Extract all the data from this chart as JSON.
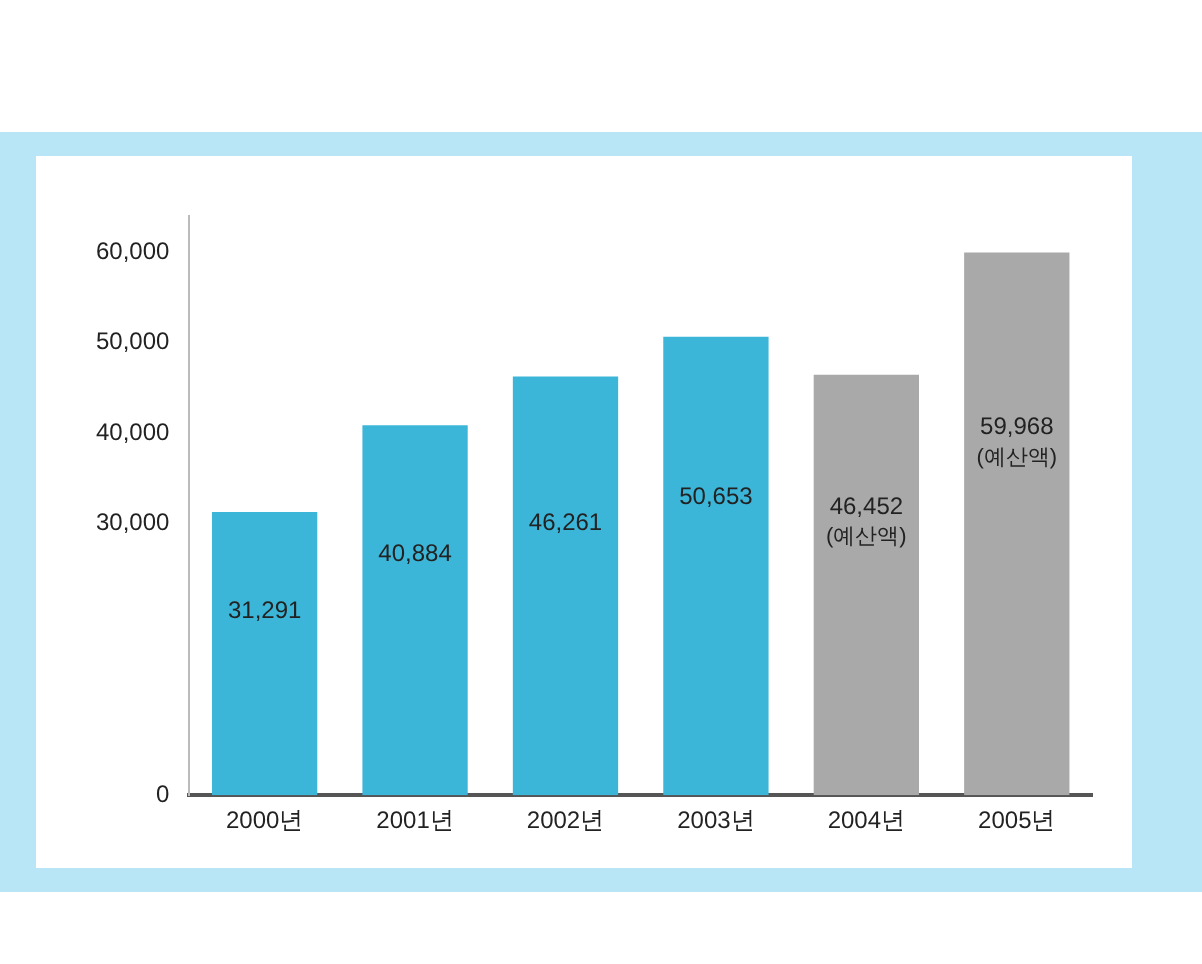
{
  "chart_data": {
    "type": "bar",
    "categories": [
      "2000년",
      "2001년",
      "2002년",
      "2003년",
      "2004년",
      "2005년"
    ],
    "values": [
      31291,
      40884,
      46261,
      50653,
      46452,
      59968
    ],
    "colors": [
      "#3cb6d8",
      "#3cb6d8",
      "#3cb6d8",
      "#3cb6d8",
      "#a9a9a9",
      "#a9a9a9"
    ],
    "value_labels": [
      "31,291",
      "40,884",
      "46,261",
      "50,653",
      "46,452 (예산액)",
      "59,968 (예산액)"
    ],
    "ylim": [
      0,
      64000
    ],
    "yticks": [
      {
        "value": 0,
        "label": "0"
      },
      {
        "value": 30000,
        "label": "30,000"
      },
      {
        "value": 40000,
        "label": "40,000"
      },
      {
        "value": 50000,
        "label": "50,000"
      },
      {
        "value": 60000,
        "label": "60,000"
      }
    ],
    "grid": false
  }
}
